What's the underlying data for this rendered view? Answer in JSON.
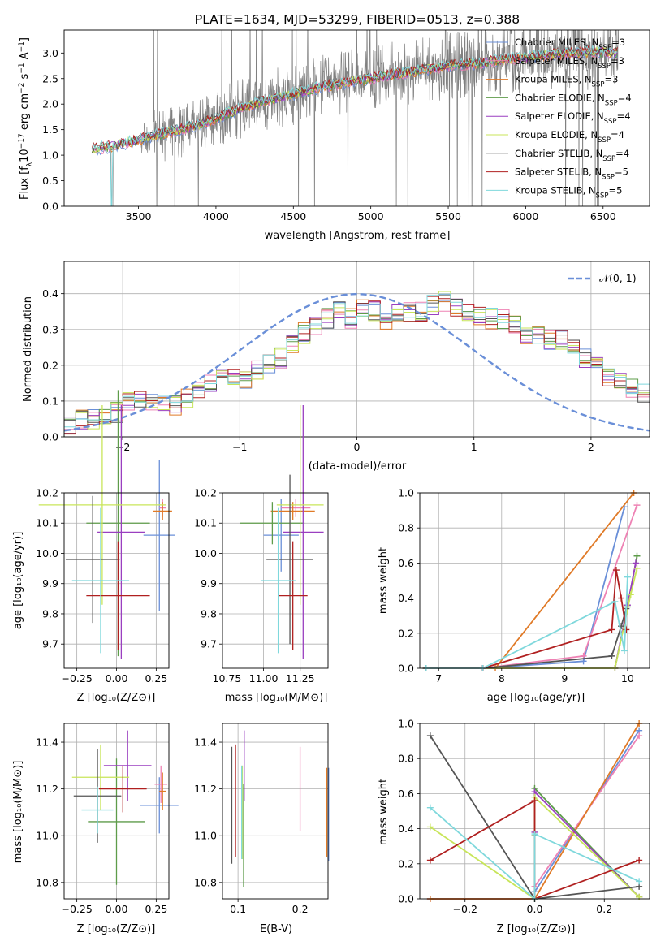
{
  "colors": {
    "Chabrier MILES": "#6a8fd8",
    "Salpeter MILES": "#ee82b4",
    "Kroupa MILES": "#e07a27",
    "Chabrier ELODIE": "#5e9c4a",
    "Salpeter ELODIE": "#9a3fc0",
    "Kroupa ELODIE": "#c8e55a",
    "Chabrier STELIB": "#555555",
    "Salpeter STELIB": "#b02020",
    "Kroupa STELIB": "#7fd8dc"
  },
  "models": [
    {
      "key": "Chabrier MILES",
      "label": "Chabrier MILES",
      "nssp": "3"
    },
    {
      "key": "Salpeter MILES",
      "label": "Salpeter MILES",
      "nssp": "3"
    },
    {
      "key": "Kroupa MILES",
      "label": "Kroupa MILES",
      "nssp": "3"
    },
    {
      "key": "Chabrier ELODIE",
      "label": "Chabrier ELODIE",
      "nssp": "4"
    },
    {
      "key": "Salpeter ELODIE",
      "label": "Salpeter ELODIE",
      "nssp": "4"
    },
    {
      "key": "Kroupa ELODIE",
      "label": "Kroupa ELODIE",
      "nssp": "4"
    },
    {
      "key": "Chabrier STELIB",
      "label": "Chabrier STELIB",
      "nssp": "4"
    },
    {
      "key": "Salpeter STELIB",
      "label": "Salpeter STELIB",
      "nssp": "5"
    },
    {
      "key": "Kroupa STELIB",
      "label": "Kroupa STELIB",
      "nssp": "5"
    }
  ],
  "chart_data": [
    {
      "id": "spectrum",
      "type": "line",
      "title": "PLATE=1634, MJD=53299, FIBERID=0513, z=0.388",
      "xlabel": "wavelength [Angstrom, rest frame]",
      "ylabel_parts": [
        "Flux [f",
        "λ",
        "10",
        "−17",
        " erg cm",
        "−2",
        " s",
        "−1",
        " A",
        "−1",
        "]"
      ],
      "xlim": [
        3020,
        6800
      ],
      "ylim": [
        0,
        3.45
      ],
      "xticks": [
        3500,
        4000,
        4500,
        5000,
        5500,
        6000,
        6500
      ],
      "yticks": [
        0.0,
        0.5,
        1.0,
        1.5,
        2.0,
        2.5,
        3.0
      ],
      "data_color": "#808080",
      "data_envelope": {
        "x": [
          3200,
          3350,
          3500,
          3700,
          3900,
          4100,
          4300,
          4500,
          4700,
          4900,
          5100,
          5300,
          5500,
          5700,
          5900,
          6100,
          6300,
          6500,
          6600
        ],
        "y": [
          1.12,
          1.18,
          1.3,
          1.45,
          1.6,
          1.85,
          2.05,
          2.2,
          2.35,
          2.45,
          2.55,
          2.65,
          2.75,
          2.8,
          2.88,
          2.95,
          3.0,
          3.02,
          3.0
        ]
      }
    },
    {
      "id": "residuals",
      "type": "histogram",
      "xlabel": "(data-model)/error",
      "ylabel": "Normed distribution",
      "xlim": [
        -2.5,
        2.5
      ],
      "ylim": [
        0,
        0.49
      ],
      "xticks": [
        -2,
        -1,
        0,
        1,
        2
      ],
      "yticks": [
        0.0,
        0.1,
        0.2,
        0.3,
        0.4
      ],
      "legend": "𝒩(0, 1)",
      "normal_color": "#6a8fd8",
      "bins_start": -2.5,
      "bin_width": 0.1,
      "base": [
        0.03,
        0.05,
        0.05,
        0.06,
        0.07,
        0.1,
        0.1,
        0.09,
        0.1,
        0.09,
        0.11,
        0.13,
        0.15,
        0.17,
        0.17,
        0.16,
        0.19,
        0.2,
        0.22,
        0.26,
        0.29,
        0.31,
        0.33,
        0.35,
        0.33,
        0.36,
        0.35,
        0.33,
        0.34,
        0.35,
        0.35,
        0.37,
        0.38,
        0.36,
        0.34,
        0.34,
        0.33,
        0.33,
        0.31,
        0.29,
        0.28,
        0.27,
        0.27,
        0.25,
        0.22,
        0.2,
        0.17,
        0.15,
        0.14,
        0.12,
        0.11,
        0.11,
        0.1,
        0.1,
        0.09,
        0.09,
        0.08,
        0.07,
        0.06,
        0.05
      ]
    },
    {
      "id": "age_vs_Z",
      "type": "scatter",
      "xlabel": "Z [log10(Z/Z⊙)]",
      "ylabel": "age  [log10(age/yr)]",
      "xlim": [
        -0.33,
        0.33
      ],
      "ylim": [
        9.62,
        10.2
      ],
      "xticks": [
        -0.25,
        0.0,
        0.25
      ],
      "xtick_labels": [
        "−0.25",
        "0.00",
        "0.25"
      ],
      "yticks": [
        9.7,
        9.8,
        9.9,
        10.0,
        10.1,
        10.2
      ],
      "points": [
        {
          "model": "Chabrier MILES",
          "x": 0.27,
          "y": 10.06,
          "xerr": 0.1,
          "yerr": 0.25
        },
        {
          "model": "Salpeter MILES",
          "x": 0.29,
          "y": 10.15,
          "xerr": 0.02,
          "yerr": 0.03
        },
        {
          "model": "Kroupa MILES",
          "x": 0.29,
          "y": 10.14,
          "xerr": 0.06,
          "yerr": 0.03
        },
        {
          "model": "Chabrier ELODIE",
          "x": 0.01,
          "y": 10.1,
          "xerr": 0.2,
          "yerr": 0.44
        },
        {
          "model": "Salpeter ELODIE",
          "x": 0.03,
          "y": 10.07,
          "xerr": 0.15,
          "yerr": 0.42
        },
        {
          "model": "Kroupa ELODIE",
          "x": -0.09,
          "y": 10.16,
          "xerr": 0.4,
          "yerr": 0.33
        },
        {
          "model": "Chabrier STELIB",
          "x": -0.15,
          "y": 9.98,
          "xerr": 0.17,
          "yerr": 0.21
        },
        {
          "model": "Salpeter STELIB",
          "x": 0.01,
          "y": 9.86,
          "xerr": 0.2,
          "yerr": 0.18
        },
        {
          "model": "Kroupa STELIB",
          "x": -0.1,
          "y": 9.91,
          "xerr": 0.18,
          "yerr": 0.24
        }
      ]
    },
    {
      "id": "age_vs_mass",
      "type": "scatter",
      "xlabel": "mass [log10(M/M⊙)]",
      "ylabel": "",
      "xlim": [
        10.72,
        11.44
      ],
      "ylim": [
        9.62,
        10.2
      ],
      "xticks": [
        10.75,
        11.0,
        11.25
      ],
      "xtick_labels": [
        "10.75",
        "11.00",
        "11.25"
      ],
      "yticks": [
        9.7,
        9.8,
        9.9,
        10.0,
        10.1,
        10.2
      ],
      "points": [
        {
          "model": "Chabrier MILES",
          "x": 11.12,
          "y": 10.06,
          "xerr": 0.12,
          "yerr": 0.12
        },
        {
          "model": "Salpeter MILES",
          "x": 11.22,
          "y": 10.15,
          "xerr": 0.1,
          "yerr": 0.03
        },
        {
          "model": "Kroupa MILES",
          "x": 11.2,
          "y": 10.14,
          "xerr": 0.15,
          "yerr": 0.03
        },
        {
          "model": "Chabrier ELODIE",
          "x": 11.06,
          "y": 10.1,
          "xerr": 0.22,
          "yerr": 0.07
        },
        {
          "model": "Salpeter ELODIE",
          "x": 11.27,
          "y": 10.07,
          "xerr": 0.14,
          "yerr": 0.42
        },
        {
          "model": "Kroupa ELODIE",
          "x": 11.25,
          "y": 10.16,
          "xerr": 0.16,
          "yerr": 0.33
        },
        {
          "model": "Chabrier STELIB",
          "x": 11.18,
          "y": 9.98,
          "xerr": 0.16,
          "yerr": 0.28
        },
        {
          "model": "Salpeter STELIB",
          "x": 11.2,
          "y": 9.86,
          "xerr": 0.1,
          "yerr": 0.18
        },
        {
          "model": "Kroupa STELIB",
          "x": 11.1,
          "y": 9.91,
          "xerr": 0.12,
          "yerr": 0.24
        }
      ]
    },
    {
      "id": "weight_vs_age",
      "type": "line",
      "xlabel": "age  [log10(age/yr)]",
      "ylabel": "mass weight",
      "xlim": [
        6.7,
        10.35
      ],
      "ylim": [
        0,
        1
      ],
      "xticks": [
        7,
        8,
        9,
        10
      ],
      "yticks": [
        0.0,
        0.2,
        0.4,
        0.6,
        0.8,
        1.0
      ],
      "series": [
        {
          "model": "Chabrier MILES",
          "x": [
            7.7,
            9.3,
            9.95
          ],
          "y": [
            0.0,
            0.04,
            0.92
          ]
        },
        {
          "model": "Salpeter MILES",
          "x": [
            7.7,
            9.3,
            10.15
          ],
          "y": [
            0.0,
            0.07,
            0.93
          ]
        },
        {
          "model": "Kroupa MILES",
          "x": [
            6.8,
            7.9,
            10.1
          ],
          "y": [
            0.0,
            0.0,
            1.0
          ]
        },
        {
          "model": "Chabrier ELODIE",
          "x": [
            7.7,
            9.8,
            10.0,
            10.15
          ],
          "y": [
            0.0,
            0.0,
            0.35,
            0.64
          ]
        },
        {
          "model": "Salpeter ELODIE",
          "x": [
            7.7,
            9.8,
            10.0,
            10.13
          ],
          "y": [
            0.0,
            0.0,
            0.36,
            0.6
          ]
        },
        {
          "model": "Kroupa ELODIE",
          "x": [
            6.8,
            9.8,
            10.05,
            10.15
          ],
          "y": [
            0.0,
            0.0,
            0.42,
            0.57
          ]
        },
        {
          "model": "Chabrier STELIB",
          "x": [
            6.8,
            7.7,
            9.75,
            9.9,
            9.98
          ],
          "y": [
            0.0,
            0.0,
            0.07,
            0.24,
            0.34
          ]
        },
        {
          "model": "Salpeter STELIB",
          "x": [
            6.8,
            7.7,
            9.75,
            9.82,
            9.9,
            9.98
          ],
          "y": [
            0.0,
            0.0,
            0.22,
            0.56,
            0.4,
            0.22
          ]
        },
        {
          "model": "Kroupa STELIB",
          "x": [
            6.8,
            7.7,
            9.8,
            9.95,
            10.0
          ],
          "y": [
            0.0,
            0.0,
            0.38,
            0.1,
            0.52
          ]
        }
      ]
    },
    {
      "id": "mass_vs_Z",
      "type": "scatter",
      "xlabel": "Z [log10(Z/Z⊙)]",
      "ylabel": "mass [log10(M/M⊙)]",
      "xlim": [
        -0.33,
        0.33
      ],
      "ylim": [
        10.73,
        11.48
      ],
      "xticks": [
        -0.25,
        0.0,
        0.25
      ],
      "xtick_labels": [
        "−0.25",
        "0.00",
        "0.25"
      ],
      "yticks": [
        10.8,
        11.0,
        11.2,
        11.4
      ],
      "points": [
        {
          "model": "Chabrier MILES",
          "x": 0.27,
          "y": 11.13,
          "xerr": 0.12,
          "yerr": 0.12
        },
        {
          "model": "Salpeter MILES",
          "x": 0.28,
          "y": 11.22,
          "xerr": 0.04,
          "yerr": 0.08
        },
        {
          "model": "Kroupa MILES",
          "x": 0.29,
          "y": 11.19,
          "xerr": 0.02,
          "yerr": 0.08
        },
        {
          "model": "Chabrier ELODIE",
          "x": 0.0,
          "y": 11.06,
          "xerr": 0.18,
          "yerr": 0.27
        },
        {
          "model": "Salpeter ELODIE",
          "x": 0.07,
          "y": 11.3,
          "xerr": 0.15,
          "yerr": 0.15
        },
        {
          "model": "Kroupa ELODIE",
          "x": -0.1,
          "y": 11.25,
          "xerr": 0.18,
          "yerr": 0.14
        },
        {
          "model": "Chabrier STELIB",
          "x": -0.12,
          "y": 11.17,
          "xerr": 0.15,
          "yerr": 0.2
        },
        {
          "model": "Salpeter STELIB",
          "x": 0.04,
          "y": 11.2,
          "xerr": 0.15,
          "yerr": 0.1
        },
        {
          "model": "Kroupa STELIB",
          "x": -0.12,
          "y": 11.11,
          "xerr": 0.1,
          "yerr": 0.1
        }
      ]
    },
    {
      "id": "mass_vs_EBV",
      "type": "scatter",
      "xlabel": "E(B-V)",
      "ylabel": "",
      "xlim": [
        0.075,
        0.245
      ],
      "ylim": [
        10.73,
        11.48
      ],
      "xticks": [
        0.1,
        0.2
      ],
      "xtick_labels": [
        "0.1",
        "0.2"
      ],
      "yticks": [
        10.8,
        11.0,
        11.2,
        11.4
      ],
      "points": [
        {
          "model": "Chabrier MILES",
          "x": 0.246,
          "y": 11.09,
          "xerr": 0,
          "yerr": 0.2
        },
        {
          "model": "Salpeter MILES",
          "x": 0.2,
          "y": 11.2,
          "xerr": 0,
          "yerr": 0.18
        },
        {
          "model": "Kroupa MILES",
          "x": 0.243,
          "y": 11.1,
          "xerr": 0,
          "yerr": 0.19
        },
        {
          "model": "Chabrier ELODIE",
          "x": 0.109,
          "y": 11.0,
          "xerr": 0,
          "yerr": 0.22
        },
        {
          "model": "Salpeter ELODIE",
          "x": 0.11,
          "y": 11.3,
          "xerr": 0,
          "yerr": 0.15
        },
        {
          "model": "Kroupa ELODIE",
          "x": 0.107,
          "y": 11.1,
          "xerr": 0,
          "yerr": 0.2
        },
        {
          "model": "Chabrier STELIB",
          "x": 0.09,
          "y": 11.13,
          "xerr": 0,
          "yerr": 0.25
        },
        {
          "model": "Salpeter STELIB",
          "x": 0.096,
          "y": 11.15,
          "xerr": 0,
          "yerr": 0.24
        },
        {
          "model": "Kroupa STELIB",
          "x": 0.106,
          "y": 11.1,
          "xerr": 0,
          "yerr": 0.2
        }
      ]
    },
    {
      "id": "weight_vs_Z",
      "type": "line",
      "xlabel": "Z [log10(Z/Z⊙)]",
      "ylabel": "mass weight",
      "xlim": [
        -0.33,
        0.33
      ],
      "ylim": [
        0,
        1
      ],
      "xticks": [
        -0.2,
        0.0,
        0.2
      ],
      "xtick_labels": [
        "−0.2",
        "0.0",
        "0.2"
      ],
      "yticks": [
        0.0,
        0.2,
        0.4,
        0.6,
        0.8,
        1.0
      ],
      "series": [
        {
          "model": "Chabrier MILES",
          "x": [
            -0.3,
            0.0,
            0.0,
            0.3
          ],
          "y": [
            0.0,
            0.0,
            0.04,
            0.96
          ]
        },
        {
          "model": "Salpeter MILES",
          "x": [
            -0.3,
            0.0,
            0.0,
            0.3
          ],
          "y": [
            0.0,
            0.0,
            0.07,
            0.93
          ]
        },
        {
          "model": "Kroupa MILES",
          "x": [
            -0.3,
            0.0,
            0.3
          ],
          "y": [
            0.0,
            0.0,
            1.0
          ]
        },
        {
          "model": "Chabrier ELODIE",
          "x": [
            0.0,
            0.0,
            0.3
          ],
          "y": [
            0.36,
            0.63,
            0.01
          ]
        },
        {
          "model": "Salpeter ELODIE",
          "x": [
            0.0,
            0.0,
            0.3
          ],
          "y": [
            0.38,
            0.61,
            0.01
          ]
        },
        {
          "model": "Kroupa ELODIE",
          "x": [
            -0.3,
            0.0,
            0.0,
            0.3
          ],
          "y": [
            0.41,
            0.0,
            0.58,
            0.01
          ]
        },
        {
          "model": "Chabrier STELIB",
          "x": [
            -0.3,
            0.0,
            0.3
          ],
          "y": [
            0.93,
            0.0,
            0.07
          ]
        },
        {
          "model": "Salpeter STELIB",
          "x": [
            -0.3,
            0.0,
            0.0,
            0.3
          ],
          "y": [
            0.22,
            0.56,
            0.0,
            0.22
          ]
        },
        {
          "model": "Kroupa STELIB",
          "x": [
            -0.3,
            0.0,
            0.0,
            0.3
          ],
          "y": [
            0.52,
            0.0,
            0.37,
            0.1
          ]
        }
      ]
    }
  ]
}
